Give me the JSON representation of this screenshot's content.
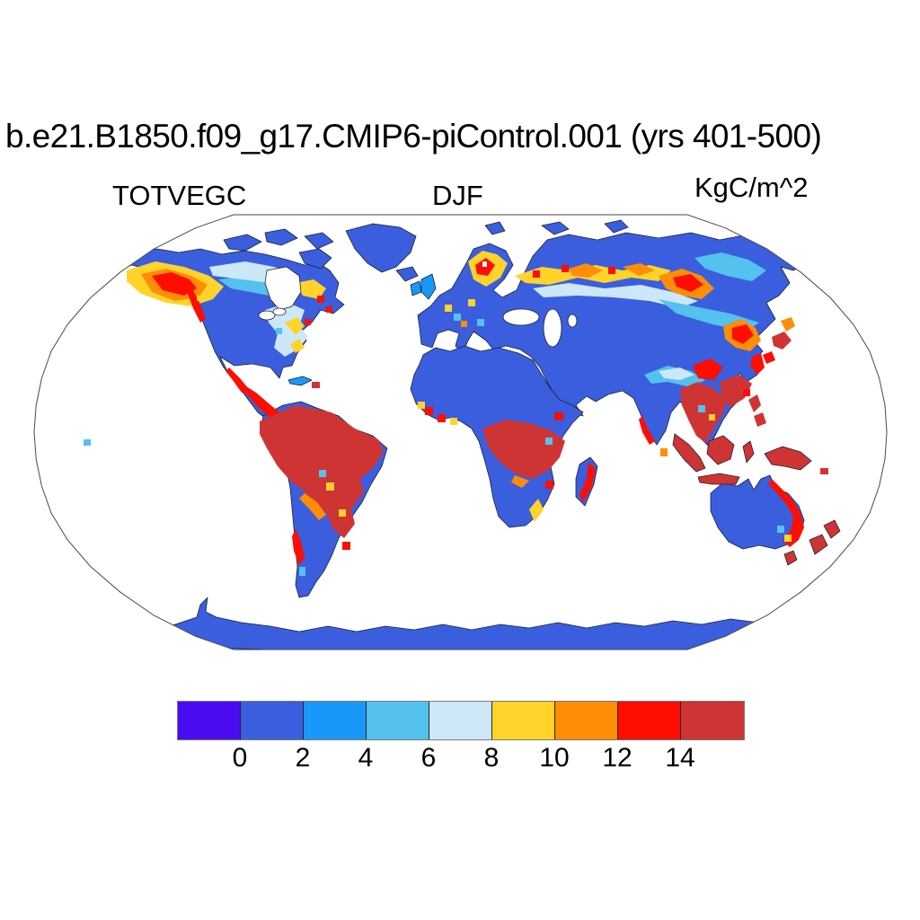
{
  "page": {
    "background_color": "#FFFFFF"
  },
  "header": {
    "title": "b.e21.B1850.f09_g17.CMIP6-piControl.001 (yrs 401-500)"
  },
  "subheader": {
    "variable_label": "TOTVEGC",
    "season_label": "DJF",
    "units_label": "KgC/m^2"
  },
  "chart_data": {
    "type": "heatmap",
    "chart_kind": "filled gridded global map (Robinson projection) of climate model output",
    "title": "b.e21.B1850.f09_g17.CMIP6-piControl.001 (yrs 401-500)",
    "variable": "TOTVEGC",
    "season": "DJF",
    "units": "KgC/m^2",
    "projection": "Robinson",
    "ocean_color": "#FFFFFF",
    "coastline_color": "#1c2430",
    "colorbar": {
      "orientation": "horizontal",
      "position": "bottom",
      "tick_labels": [
        "0",
        "2",
        "4",
        "6",
        "8",
        "10",
        "12",
        "14"
      ],
      "segment_colors": [
        "#4A0BF0",
        "#3A5EDE",
        "#1899FA",
        "#55C1EE",
        "#CBE7F8",
        "#FFD32A",
        "#FF8D05",
        "#FE0D02",
        "#CF3434"
      ],
      "segment_ranges": [
        "lt0",
        "0-2",
        "2-4",
        "4-6",
        "6-8",
        "8-10",
        "10-12",
        "12-14",
        "gt14"
      ]
    },
    "map_readings": [
      {
        "region": "Amazon basin",
        "value_kgc_m2": ">14"
      },
      {
        "region": "Congo basin",
        "value_kgc_m2": ">14"
      },
      {
        "region": "Southeast Asia / Indonesia / New Guinea / Philippines",
        "value_kgc_m2": ">14"
      },
      {
        "region": "Pacific Northwest coast of North America",
        "value_kgc_m2": "12-14"
      },
      {
        "region": "Western Canada boreal belt",
        "value_kgc_m2": "8-14"
      },
      {
        "region": "Scandinavia and Siberian taiga belt",
        "value_kgc_m2": "6-14"
      },
      {
        "region": "Eastern United States",
        "value_kgc_m2": "4-10"
      },
      {
        "region": "East Asia (Korea, Japan, south China)",
        "value_kgc_m2": "8-14"
      },
      {
        "region": "Eastern Australia coast, Tasmania, New Zealand, Madagascar east coast",
        "value_kgc_m2": "10-14"
      },
      {
        "region": "Deserts, tundra, grasslands, Antarctica",
        "value_kgc_m2": "0-2"
      },
      {
        "region": "Oceans",
        "value_kgc_m2": "no data (white)"
      }
    ]
  }
}
